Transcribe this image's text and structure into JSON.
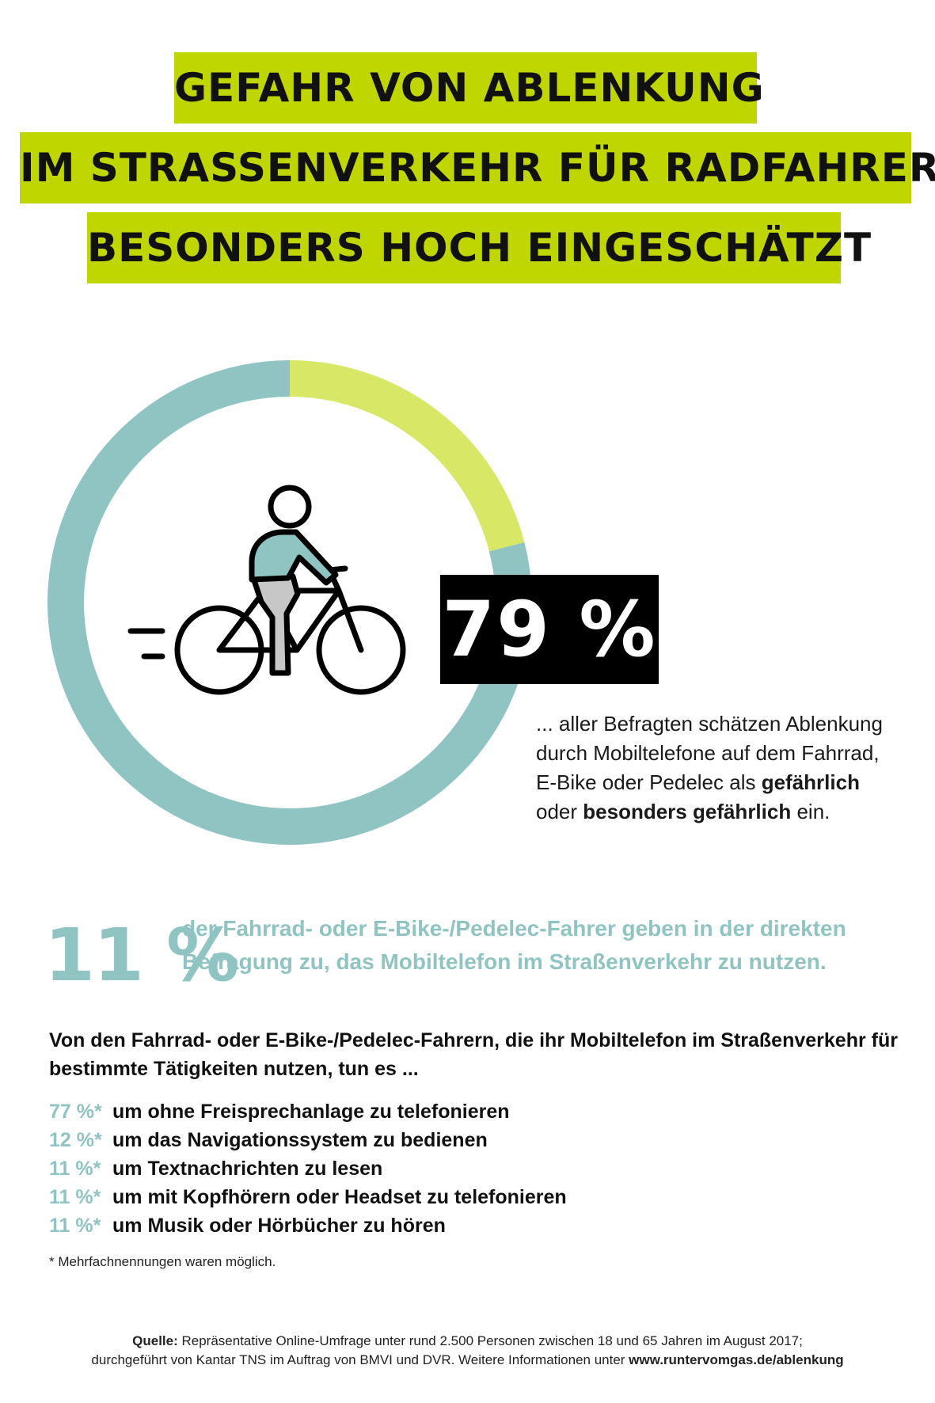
{
  "title": {
    "line1": "GEFAHR VON ABLENKUNG",
    "line2": "IM STRASSENVERKEHR FÜR RADFAHRER",
    "line3": "BESONDERS HOCH EINGESCHÄTZT"
  },
  "chart_data": {
    "type": "pie",
    "donut": true,
    "slices": [
      {
        "value": 79,
        "color": "#8fc4c3"
      },
      {
        "value": 21,
        "color": "#d8e766"
      }
    ],
    "label": "79 %"
  },
  "description": {
    "part1": "... aller Befragten schätzen Ablenkung durch Mobiltelefone auf dem Fahrrad, E-Bike oder Pedelec als ",
    "bold1": "gefährlich",
    "part2": " oder ",
    "bold2": "besonders gefährlich",
    "part3": " ein."
  },
  "stat11": {
    "value": "11 %",
    "text": "der Fahrrad- oder E-Bike-/Pedelec-Fahrer geben in der direkten Befragung zu, das Mobiltelefon im Straßenverkehr zu nutzen."
  },
  "intro": "Von den Fahrrad- oder E-Bike-/Pedelec-Fahrern, die ihr Mobiltelefon im Straßenverkehr für bestimmte Tätigkeiten nutzen, tun es ...",
  "activities": [
    {
      "pct": "77 %*",
      "label": "um ohne Freisprechanlage zu telefonieren"
    },
    {
      "pct": "12 %*",
      "label": "um das Navigationssystem zu bedienen"
    },
    {
      "pct": "11 %*",
      "label": "um Textnachrichten zu lesen"
    },
    {
      "pct": "11 %*",
      "label": "um mit Kopfhörern oder Headset zu telefonieren"
    },
    {
      "pct": "11 %*",
      "label": "um Musik oder Hörbücher zu hören"
    }
  ],
  "footnote": "* Mehrfachnennungen waren möglich.",
  "source": {
    "label": "Quelle:",
    "line1": " Repräsentative Online-Umfrage unter rund 2.500 Personen zwischen 18 und 65 Jahren im August 2017;",
    "line2": "durchgeführt von Kantar TNS im Auftrag von BMVI und DVR. Weitere Informationen unter ",
    "url": "www.runtervomgas.de/ablenkung"
  },
  "icons": {
    "illustration": "cyclist-icon"
  }
}
